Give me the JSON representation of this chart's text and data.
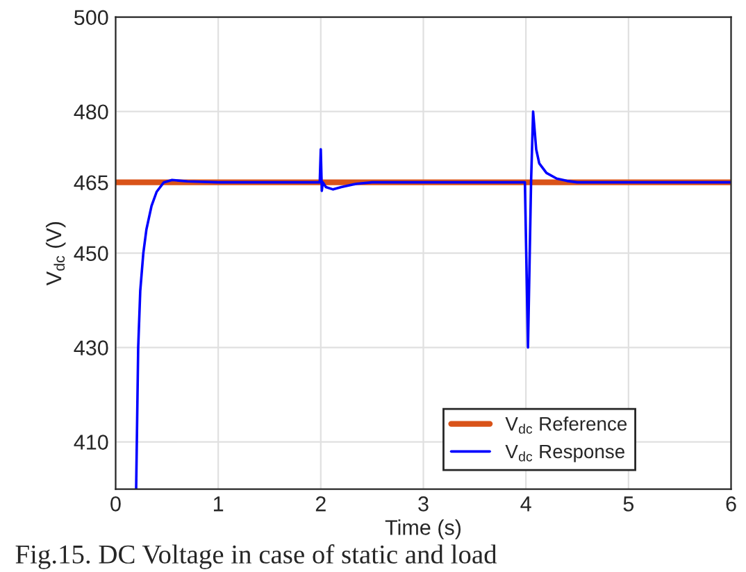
{
  "chart_data": {
    "type": "line",
    "xlabel": "Time (s)",
    "ylabel": "V$_{dc}$ (V)",
    "annotations": [
      "Fig.15. DC Voltage in case of static and load"
    ],
    "xlim": [
      0,
      6
    ],
    "xticks": [
      0,
      1,
      2,
      3,
      4,
      5,
      6
    ],
    "ylim": [
      400,
      500
    ],
    "yticks": [
      410,
      430,
      450,
      465,
      480,
      500
    ],
    "grid": true,
    "legend": "bottom right",
    "series": [
      {
        "name": "V$_{dc}$ Reference",
        "color": "#d95319",
        "x": [
          0,
          6
        ],
        "values": [
          465,
          465
        ]
      },
      {
        "name": "V$_{dc}$ Response",
        "color": "#0000ff",
        "x": [
          0.2,
          0.21,
          0.22,
          0.24,
          0.27,
          0.3,
          0.35,
          0.4,
          0.47,
          0.55,
          0.7,
          1.0,
          1.5,
          1.99,
          2.0,
          2.01,
          2.02,
          2.05,
          2.12,
          2.2,
          2.35,
          2.5,
          3.0,
          3.5,
          3.99,
          4.02,
          4.05,
          4.07,
          4.1,
          4.13,
          4.2,
          4.3,
          4.4,
          4.5,
          5.0,
          5.5,
          6.0
        ],
        "values": [
          400,
          415,
          430,
          442,
          450,
          455,
          460,
          463,
          465,
          465.5,
          465.2,
          465,
          465,
          465,
          472,
          463.2,
          465,
          464,
          463.5,
          464,
          464.7,
          465,
          465,
          465,
          465,
          430,
          465,
          480,
          472,
          469,
          467,
          465.8,
          465.3,
          465,
          465,
          465,
          465
        ]
      }
    ]
  }
}
